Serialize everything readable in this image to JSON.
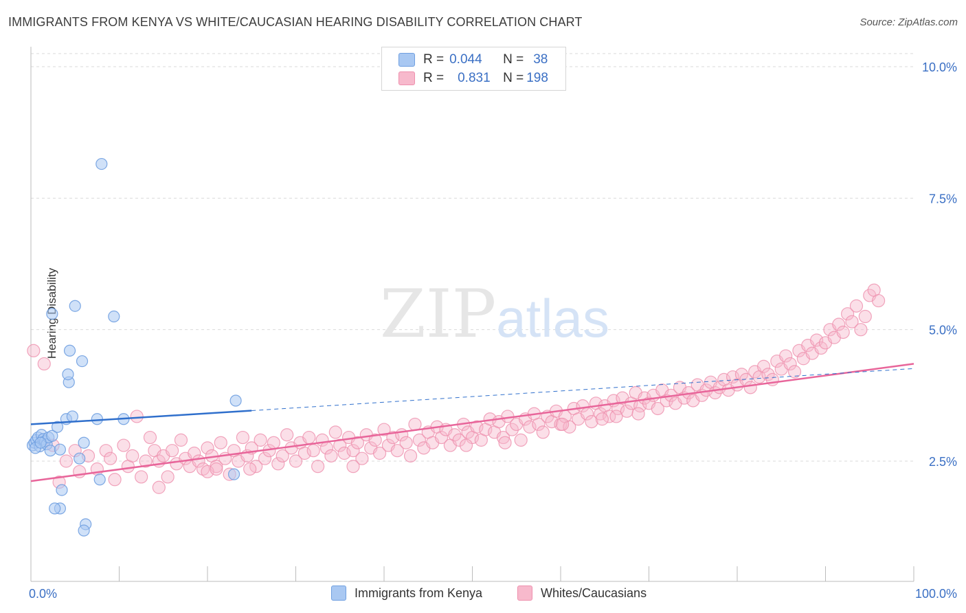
{
  "title": "IMMIGRANTS FROM KENYA VS WHITE/CAUCASIAN HEARING DISABILITY CORRELATION CHART",
  "source": "Source: ZipAtlas.com",
  "legend": {
    "rows": [
      {
        "r_label": "R =",
        "r_value": "0.044",
        "n_label": "N =",
        "n_value": "38"
      },
      {
        "r_label": "R =",
        "r_value": "0.831",
        "n_label": "N =",
        "n_value": "198"
      }
    ]
  },
  "colors": {
    "blue_fill": "#a9c8f2",
    "blue_stroke": "#6f9fe0",
    "blue_line": "#2f6fcc",
    "pink_fill": "#f7b9cc",
    "pink_stroke": "#ee8fad",
    "pink_line": "#e8659a",
    "tick_text": "#3a6fc4",
    "grid": "#d9d9d9"
  },
  "chart_data": {
    "type": "scatter",
    "title": "IMMIGRANTS FROM KENYA VS WHITE/CAUCASIAN HEARING DISABILITY CORRELATION CHART",
    "xlabel": "",
    "ylabel": "Hearing Disability",
    "xlim": [
      0,
      100
    ],
    "ylim": [
      0.5,
      10.5
    ],
    "x_tick_labels": [
      "0.0%",
      "100.0%"
    ],
    "y_ticks": [
      2.5,
      5.0,
      7.5,
      10.0
    ],
    "y_tick_labels": [
      "2.5%",
      "5.0%",
      "7.5%",
      "10.0%"
    ],
    "grid": true,
    "legend_position": "top-center",
    "series": [
      {
        "name": "Immigrants from Kenya",
        "color": "blue",
        "R": 0.044,
        "N": 38,
        "trend_solid": {
          "x": [
            0,
            25
          ],
          "y": [
            3.2,
            3.46
          ]
        },
        "trend_dashed": {
          "x": [
            25,
            100
          ],
          "y": [
            3.46,
            4.26
          ]
        },
        "points": [
          [
            0.2,
            2.8
          ],
          [
            0.4,
            2.85
          ],
          [
            0.6,
            2.9
          ],
          [
            0.8,
            2.95
          ],
          [
            1.0,
            2.78
          ],
          [
            1.2,
            3.0
          ],
          [
            1.4,
            2.92
          ],
          [
            1.6,
            2.88
          ],
          [
            1.8,
            2.82
          ],
          [
            2.0,
            2.95
          ],
          [
            2.2,
            2.7
          ],
          [
            2.4,
            2.98
          ],
          [
            0.5,
            2.75
          ],
          [
            1.1,
            2.85
          ],
          [
            3.0,
            3.15
          ],
          [
            4.0,
            3.3
          ],
          [
            4.4,
            4.6
          ],
          [
            4.7,
            3.35
          ],
          [
            5.5,
            2.55
          ],
          [
            6.0,
            2.85
          ],
          [
            7.5,
            3.3
          ],
          [
            3.3,
            2.72
          ],
          [
            8.0,
            8.15
          ],
          [
            5.0,
            5.45
          ],
          [
            5.8,
            4.4
          ],
          [
            6.2,
            1.3
          ],
          [
            6.0,
            1.18
          ],
          [
            3.5,
            1.95
          ],
          [
            3.3,
            1.6
          ],
          [
            2.7,
            1.6
          ],
          [
            2.4,
            5.3
          ],
          [
            4.3,
            4.0
          ],
          [
            4.2,
            4.15
          ],
          [
            9.4,
            5.25
          ],
          [
            7.8,
            2.15
          ],
          [
            10.5,
            3.3
          ],
          [
            23.2,
            3.65
          ],
          [
            23.0,
            2.25
          ]
        ]
      },
      {
        "name": "Whites/Caucasians",
        "color": "pink",
        "R": 0.831,
        "N": 198,
        "trend_solid": {
          "x": [
            0,
            100
          ],
          "y": [
            2.12,
            4.35
          ]
        },
        "points": [
          [
            0.3,
            4.6
          ],
          [
            1.5,
            4.35
          ],
          [
            2.5,
            2.8
          ],
          [
            3.2,
            2.1
          ],
          [
            4.0,
            2.5
          ],
          [
            5.0,
            2.7
          ],
          [
            5.5,
            2.3
          ],
          [
            6.5,
            2.6
          ],
          [
            7.5,
            2.35
          ],
          [
            8.5,
            2.7
          ],
          [
            9.0,
            2.55
          ],
          [
            9.5,
            2.15
          ],
          [
            10.5,
            2.8
          ],
          [
            11.0,
            2.4
          ],
          [
            11.5,
            2.6
          ],
          [
            12.0,
            3.35
          ],
          [
            12.5,
            2.2
          ],
          [
            13.0,
            2.5
          ],
          [
            13.5,
            2.95
          ],
          [
            14.0,
            2.7
          ],
          [
            14.5,
            2.5
          ],
          [
            15.0,
            2.6
          ],
          [
            15.5,
            2.2
          ],
          [
            16.0,
            2.7
          ],
          [
            16.5,
            2.45
          ],
          [
            17.0,
            2.9
          ],
          [
            17.5,
            2.55
          ],
          [
            18.0,
            2.4
          ],
          [
            18.5,
            2.65
          ],
          [
            19.0,
            2.5
          ],
          [
            19.5,
            2.35
          ],
          [
            20.0,
            2.75
          ],
          [
            20.5,
            2.6
          ],
          [
            21.0,
            2.4
          ],
          [
            21.5,
            2.85
          ],
          [
            22.0,
            2.55
          ],
          [
            22.5,
            2.25
          ],
          [
            23.0,
            2.7
          ],
          [
            23.5,
            2.5
          ],
          [
            24.0,
            2.95
          ],
          [
            24.5,
            2.6
          ],
          [
            25.0,
            2.75
          ],
          [
            25.5,
            2.4
          ],
          [
            26.0,
            2.9
          ],
          [
            26.5,
            2.55
          ],
          [
            27.0,
            2.7
          ],
          [
            27.5,
            2.85
          ],
          [
            28.0,
            2.45
          ],
          [
            28.5,
            2.6
          ],
          [
            29.0,
            3.0
          ],
          [
            29.5,
            2.75
          ],
          [
            30.0,
            2.5
          ],
          [
            30.5,
            2.85
          ],
          [
            31.0,
            2.65
          ],
          [
            31.5,
            2.95
          ],
          [
            32.0,
            2.7
          ],
          [
            32.5,
            2.4
          ],
          [
            33.0,
            2.9
          ],
          [
            33.5,
            2.75
          ],
          [
            34.0,
            2.6
          ],
          [
            34.5,
            3.05
          ],
          [
            35.0,
            2.8
          ],
          [
            35.5,
            2.65
          ],
          [
            36.0,
            2.95
          ],
          [
            36.5,
            2.7
          ],
          [
            37.0,
            2.85
          ],
          [
            37.5,
            2.55
          ],
          [
            38.0,
            3.0
          ],
          [
            38.5,
            2.75
          ],
          [
            39.0,
            2.9
          ],
          [
            39.5,
            2.65
          ],
          [
            40.0,
            3.1
          ],
          [
            40.5,
            2.8
          ],
          [
            41.0,
            2.95
          ],
          [
            41.5,
            2.7
          ],
          [
            42.0,
            3.0
          ],
          [
            42.5,
            2.85
          ],
          [
            43.0,
            2.6
          ],
          [
            43.5,
            3.2
          ],
          [
            44.0,
            2.9
          ],
          [
            44.5,
            2.75
          ],
          [
            45.0,
            3.05
          ],
          [
            45.5,
            2.85
          ],
          [
            46.0,
            3.15
          ],
          [
            46.5,
            2.95
          ],
          [
            47.0,
            3.1
          ],
          [
            47.5,
            2.8
          ],
          [
            48.0,
            3.0
          ],
          [
            48.5,
            2.9
          ],
          [
            49.0,
            3.2
          ],
          [
            49.5,
            3.05
          ],
          [
            50.0,
            2.95
          ],
          [
            50.5,
            3.15
          ],
          [
            51.0,
            2.9
          ],
          [
            51.5,
            3.1
          ],
          [
            52.0,
            3.3
          ],
          [
            52.5,
            3.05
          ],
          [
            53.0,
            3.25
          ],
          [
            53.5,
            2.95
          ],
          [
            54.0,
            3.35
          ],
          [
            54.5,
            3.1
          ],
          [
            55.0,
            3.2
          ],
          [
            55.5,
            2.9
          ],
          [
            56.0,
            3.3
          ],
          [
            56.5,
            3.15
          ],
          [
            57.0,
            3.4
          ],
          [
            57.5,
            3.2
          ],
          [
            58.0,
            3.05
          ],
          [
            58.5,
            3.35
          ],
          [
            59.0,
            3.25
          ],
          [
            59.5,
            3.45
          ],
          [
            60.0,
            3.2
          ],
          [
            60.5,
            3.35
          ],
          [
            61.0,
            3.15
          ],
          [
            61.5,
            3.5
          ],
          [
            62.0,
            3.3
          ],
          [
            62.5,
            3.55
          ],
          [
            63.0,
            3.4
          ],
          [
            63.5,
            3.25
          ],
          [
            64.0,
            3.6
          ],
          [
            64.5,
            3.4
          ],
          [
            65.0,
            3.55
          ],
          [
            65.5,
            3.35
          ],
          [
            66.0,
            3.65
          ],
          [
            66.5,
            3.5
          ],
          [
            67.0,
            3.7
          ],
          [
            67.5,
            3.45
          ],
          [
            68.0,
            3.6
          ],
          [
            68.5,
            3.8
          ],
          [
            69.0,
            3.55
          ],
          [
            69.5,
            3.7
          ],
          [
            70.0,
            3.6
          ],
          [
            70.5,
            3.75
          ],
          [
            71.0,
            3.5
          ],
          [
            71.5,
            3.85
          ],
          [
            72.0,
            3.65
          ],
          [
            72.5,
            3.75
          ],
          [
            73.0,
            3.6
          ],
          [
            73.5,
            3.9
          ],
          [
            74.0,
            3.7
          ],
          [
            74.5,
            3.8
          ],
          [
            75.0,
            3.65
          ],
          [
            75.5,
            3.95
          ],
          [
            76.0,
            3.75
          ],
          [
            76.5,
            3.85
          ],
          [
            77.0,
            4.0
          ],
          [
            77.5,
            3.8
          ],
          [
            78.0,
            3.9
          ],
          [
            78.5,
            4.05
          ],
          [
            79.0,
            3.85
          ],
          [
            79.5,
            4.1
          ],
          [
            80.0,
            3.95
          ],
          [
            80.5,
            4.15
          ],
          [
            81.0,
            4.05
          ],
          [
            81.5,
            3.9
          ],
          [
            82.0,
            4.2
          ],
          [
            82.5,
            4.1
          ],
          [
            83.0,
            4.3
          ],
          [
            83.5,
            4.15
          ],
          [
            84.0,
            4.05
          ],
          [
            84.5,
            4.4
          ],
          [
            85.0,
            4.25
          ],
          [
            85.5,
            4.5
          ],
          [
            86.0,
            4.35
          ],
          [
            86.5,
            4.2
          ],
          [
            87.0,
            4.6
          ],
          [
            87.5,
            4.45
          ],
          [
            88.0,
            4.7
          ],
          [
            88.5,
            4.55
          ],
          [
            89.0,
            4.8
          ],
          [
            89.5,
            4.65
          ],
          [
            90.0,
            4.75
          ],
          [
            90.5,
            5.0
          ],
          [
            91.0,
            4.85
          ],
          [
            91.5,
            5.1
          ],
          [
            92.0,
            4.95
          ],
          [
            92.5,
            5.3
          ],
          [
            93.0,
            5.15
          ],
          [
            93.5,
            5.45
          ],
          [
            94.0,
            5.0
          ],
          [
            94.5,
            5.25
          ],
          [
            95.0,
            5.65
          ],
          [
            95.5,
            5.75
          ],
          [
            96.0,
            5.55
          ],
          [
            20.0,
            2.3
          ],
          [
            21.0,
            2.35
          ],
          [
            14.5,
            2.0
          ],
          [
            36.5,
            2.4
          ],
          [
            60.2,
            3.2
          ],
          [
            66.3,
            3.35
          ],
          [
            68.8,
            3.4
          ],
          [
            64.7,
            3.3
          ],
          [
            53.7,
            2.85
          ],
          [
            49.3,
            2.8
          ],
          [
            24.8,
            2.35
          ]
        ]
      }
    ]
  }
}
